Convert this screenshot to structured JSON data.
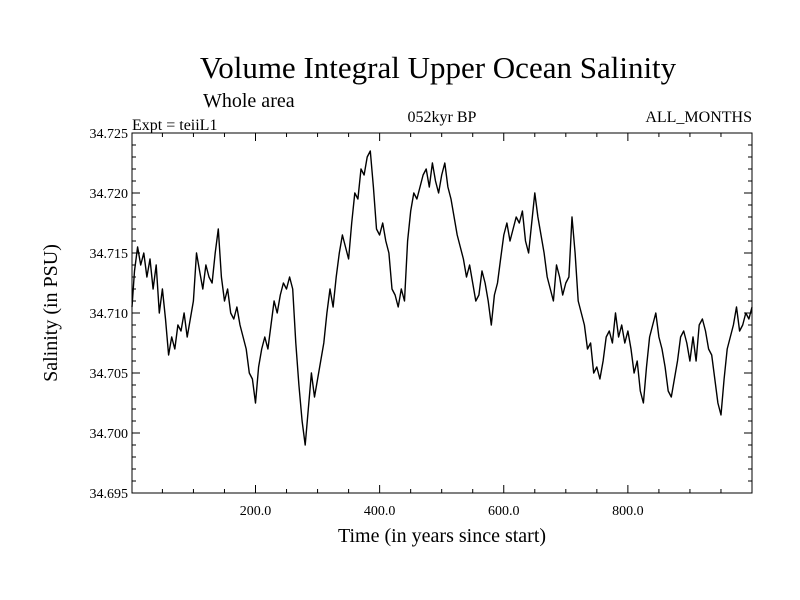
{
  "chart_data": {
    "type": "line",
    "title": "Volume Integral Upper Ocean Salinity",
    "subtitle": "Whole area",
    "left_label": "Expt = teiiL1",
    "center_label": "052kyr BP",
    "right_label": "ALL_MONTHS",
    "xlabel": "Time (in years since start)",
    "ylabel": "Salinity (in PSU)",
    "xlim": [
      1,
      1000
    ],
    "ylim": [
      34.695,
      34.725
    ],
    "xticks": [
      200,
      400,
      600,
      800
    ],
    "xtick_labels": [
      "200.0",
      "400.0",
      "600.0",
      "800.0"
    ],
    "yticks": [
      34.695,
      34.7,
      34.705,
      34.71,
      34.715,
      34.72,
      34.725
    ],
    "ytick_labels": [
      "34.695",
      "34.700",
      "34.705",
      "34.710",
      "34.715",
      "34.720",
      "34.725"
    ],
    "grid": false,
    "line_color": "#000000",
    "series": [
      {
        "x": [
          1,
          5,
          10,
          15,
          20,
          25,
          30,
          35,
          40,
          45,
          50,
          55,
          60,
          65,
          70,
          75,
          80,
          85,
          90,
          95,
          100,
          105,
          110,
          115,
          120,
          125,
          130,
          135,
          140,
          145,
          150,
          155,
          160,
          165,
          170,
          175,
          180,
          185,
          190,
          195,
          200,
          205,
          210,
          215,
          220,
          225,
          230,
          235,
          240,
          245,
          250,
          255,
          260,
          265,
          270,
          275,
          280,
          285,
          290,
          295,
          300,
          305,
          310,
          315,
          320,
          325,
          330,
          335,
          340,
          345,
          350,
          355,
          360,
          365,
          370,
          375,
          380,
          385,
          390,
          395,
          400,
          405,
          410,
          415,
          420,
          425,
          430,
          435,
          440,
          445,
          450,
          455,
          460,
          465,
          470,
          475,
          480,
          485,
          490,
          495,
          500,
          505,
          510,
          515,
          520,
          525,
          530,
          535,
          540,
          545,
          550,
          555,
          560,
          565,
          570,
          575,
          580,
          585,
          590,
          595,
          600,
          605,
          610,
          615,
          620,
          625,
          630,
          635,
          640,
          645,
          650,
          655,
          660,
          665,
          670,
          675,
          680,
          685,
          690,
          695,
          700,
          705,
          710,
          715,
          720,
          725,
          730,
          735,
          740,
          745,
          750,
          755,
          760,
          765,
          770,
          775,
          780,
          785,
          790,
          795,
          800,
          805,
          810,
          815,
          820,
          825,
          830,
          835,
          840,
          845,
          850,
          855,
          860,
          865,
          870,
          875,
          880,
          885,
          890,
          895,
          900,
          905,
          910,
          915,
          920,
          925,
          930,
          935,
          940,
          945,
          950,
          955,
          960,
          965,
          970,
          975,
          980,
          985,
          990,
          995,
          1000
        ],
        "values": [
          34.7105,
          34.7135,
          34.7155,
          34.714,
          34.715,
          34.713,
          34.7145,
          34.712,
          34.714,
          34.71,
          34.712,
          34.7095,
          34.7065,
          34.708,
          34.707,
          34.709,
          34.7085,
          34.71,
          34.708,
          34.7095,
          34.711,
          34.715,
          34.7135,
          34.712,
          34.714,
          34.713,
          34.7125,
          34.715,
          34.717,
          34.713,
          34.711,
          34.712,
          34.71,
          34.7095,
          34.7105,
          34.709,
          34.708,
          34.707,
          34.705,
          34.7045,
          34.7025,
          34.7055,
          34.707,
          34.708,
          34.707,
          34.709,
          34.711,
          34.71,
          34.7115,
          34.7125,
          34.712,
          34.713,
          34.712,
          34.7075,
          34.704,
          34.701,
          34.699,
          34.702,
          34.705,
          34.703,
          34.7045,
          34.706,
          34.7075,
          34.71,
          34.712,
          34.7105,
          34.713,
          34.715,
          34.7165,
          34.7155,
          34.7145,
          34.7175,
          34.72,
          34.7195,
          34.722,
          34.7215,
          34.723,
          34.7235,
          34.7205,
          34.717,
          34.7165,
          34.7175,
          34.716,
          34.715,
          34.712,
          34.7115,
          34.7105,
          34.712,
          34.711,
          34.716,
          34.7185,
          34.72,
          34.7195,
          34.7205,
          34.7215,
          34.722,
          34.7205,
          34.7225,
          34.721,
          34.72,
          34.7215,
          34.7225,
          34.7205,
          34.7195,
          34.718,
          34.7165,
          34.7155,
          34.7145,
          34.713,
          34.714,
          34.7125,
          34.711,
          34.7115,
          34.7135,
          34.7125,
          34.711,
          34.709,
          34.7115,
          34.7125,
          34.7145,
          34.7165,
          34.7175,
          34.716,
          34.717,
          34.718,
          34.7175,
          34.7185,
          34.716,
          34.715,
          34.7175,
          34.72,
          34.718,
          34.7165,
          34.715,
          34.713,
          34.712,
          34.711,
          34.714,
          34.713,
          34.7115,
          34.7125,
          34.713,
          34.718,
          34.715,
          34.711,
          34.71,
          34.709,
          34.707,
          34.7075,
          34.705,
          34.7055,
          34.7045,
          34.706,
          34.708,
          34.7085,
          34.7075,
          34.71,
          34.708,
          34.709,
          34.7075,
          34.7085,
          34.707,
          34.705,
          34.706,
          34.7035,
          34.7025,
          34.7055,
          34.708,
          34.709,
          34.71,
          34.708,
          34.707,
          34.7055,
          34.7035,
          34.703,
          34.7045,
          34.706,
          34.708,
          34.7085,
          34.7075,
          34.706,
          34.708,
          34.706,
          34.709,
          34.7095,
          34.7085,
          34.707,
          34.7065,
          34.7045,
          34.7025,
          34.7015,
          34.7045,
          34.707,
          34.708,
          34.709,
          34.7105,
          34.7085,
          34.709,
          34.71,
          34.7095,
          34.7105
        ]
      }
    ]
  }
}
